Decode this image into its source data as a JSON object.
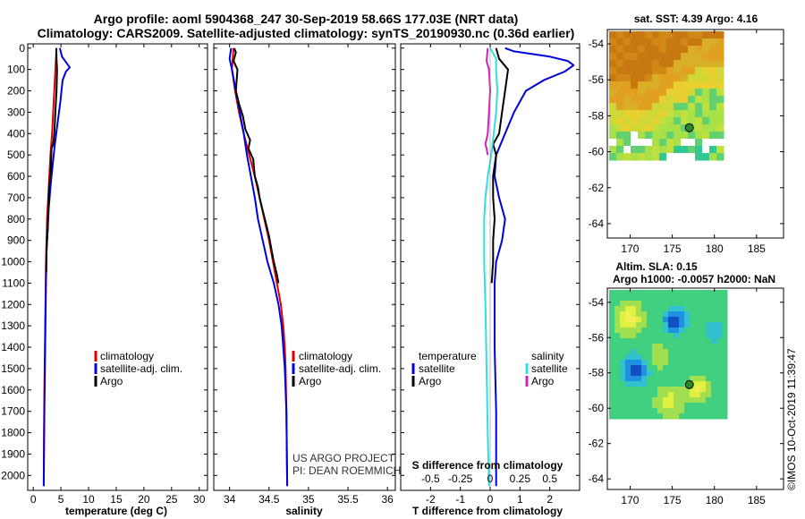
{
  "header": {
    "line1": "Argo profile: aoml 5904368_247 30-Sep-2019 58.66S 177.03E (NRT data)",
    "line2": "Climatology: CARS2009. Satellite-adjusted climatology: synTS_20190930.nc (0.36d earlier)"
  },
  "depth_ticks": [
    "0",
    "100",
    "200",
    "300",
    "400",
    "500",
    "600",
    "700",
    "800",
    "900",
    "1000",
    "1100",
    "1200",
    "1300",
    "1400",
    "1500",
    "1600",
    "1700",
    "1800",
    "1900",
    "2000"
  ],
  "legend": {
    "climatology": "climatology",
    "satellite_adj": "satellite-adj. clim.",
    "argo": "Argo",
    "temperature": "temperature",
    "salinity": "salinity",
    "satellite": "satellite"
  },
  "credits": {
    "project": "US ARGO PROJECT",
    "pi": "PI: DEAN ROEMMICH"
  },
  "maps": {
    "sst_title": "sat. SST: 4.39 Argo: 4.16",
    "sla_title1": "Altim. SLA: 0.15",
    "sla_title2": "Argo h1000: -0.0057 h2000: NaN",
    "lat_ticks": [
      "-54",
      "-56",
      "-58",
      "-60",
      "-62",
      "-64"
    ],
    "lon_ticks": [
      "170",
      "175",
      "180",
      "185"
    ],
    "float_lon": 177.03,
    "float_lat": -58.66
  },
  "watermark": "©IMOS 10-Oct-2019 11:39:47",
  "colors": {
    "climatology": "#e00000",
    "satellite": "#0000dd",
    "argo": "#000000",
    "sat_salinity": "#30e0e0",
    "argo_salinity": "#d020c0"
  },
  "chart_data": [
    {
      "type": "line",
      "xlabel": "temperature (deg C)",
      "ylabel": "",
      "xlim": [
        -1,
        31.5
      ],
      "ylim": [
        2070,
        -20
      ],
      "x_ticks": [
        "0",
        "5",
        "10",
        "15",
        "20",
        "25",
        "30"
      ],
      "series": [
        {
          "name": "climatology",
          "color": "#e00000",
          "points": [
            [
              4.2,
              0
            ],
            [
              4.0,
              100
            ],
            [
              3.8,
              200
            ],
            [
              3.6,
              300
            ],
            [
              3.4,
              400
            ],
            [
              3.1,
              500
            ],
            [
              2.9,
              600
            ],
            [
              2.7,
              700
            ],
            [
              2.5,
              800
            ],
            [
              2.4,
              900
            ],
            [
              2.3,
              1000
            ],
            [
              2.2,
              1200
            ],
            [
              2.1,
              1400
            ],
            [
              2.0,
              1600
            ],
            [
              1.95,
              1800
            ],
            [
              1.9,
              2050
            ]
          ]
        },
        {
          "name": "satellite-adj. clim.",
          "color": "#0000dd",
          "points": [
            [
              4.8,
              0
            ],
            [
              5.2,
              40
            ],
            [
              6.6,
              90
            ],
            [
              5.9,
              110
            ],
            [
              5.3,
              150
            ],
            [
              4.9,
              250
            ],
            [
              4.4,
              350
            ],
            [
              3.9,
              450
            ],
            [
              3.5,
              550
            ],
            [
              3.1,
              650
            ],
            [
              2.8,
              750
            ],
            [
              2.6,
              850
            ],
            [
              2.4,
              950
            ],
            [
              2.3,
              1100
            ],
            [
              2.2,
              1300
            ],
            [
              2.1,
              1500
            ],
            [
              2.0,
              1700
            ],
            [
              1.95,
              1900
            ],
            [
              1.9,
              2050
            ]
          ]
        },
        {
          "name": "Argo",
          "color": "#000000",
          "points": [
            [
              4.16,
              0
            ],
            [
              4.2,
              50
            ],
            [
              4.3,
              100
            ],
            [
              4.2,
              200
            ],
            [
              4.0,
              300
            ],
            [
              3.8,
              400
            ],
            [
              3.6,
              450
            ],
            [
              3.3,
              470
            ],
            [
              3.2,
              550
            ],
            [
              2.9,
              650
            ],
            [
              2.7,
              750
            ],
            [
              2.6,
              850
            ],
            [
              2.5,
              900
            ],
            [
              2.4,
              950
            ],
            [
              2.35,
              1050
            ]
          ]
        }
      ]
    },
    {
      "type": "line",
      "xlabel": "salinity",
      "ylabel": "",
      "xlim": [
        33.8,
        36.1
      ],
      "ylim": [
        2070,
        -20
      ],
      "x_ticks": [
        "34",
        "34.5",
        "35",
        "35.5",
        "36"
      ],
      "series": [
        {
          "name": "climatology",
          "color": "#e00000",
          "points": [
            [
              34.05,
              0
            ],
            [
              34.03,
              100
            ],
            [
              34.05,
              150
            ],
            [
              34.07,
              200
            ],
            [
              34.12,
              300
            ],
            [
              34.18,
              400
            ],
            [
              34.25,
              500
            ],
            [
              34.32,
              600
            ],
            [
              34.38,
              700
            ],
            [
              34.44,
              800
            ],
            [
              34.5,
              900
            ],
            [
              34.55,
              1000
            ],
            [
              34.6,
              1100
            ],
            [
              34.65,
              1200
            ],
            [
              34.68,
              1300
            ],
            [
              34.7,
              1400
            ],
            [
              34.71,
              1500
            ],
            [
              34.72,
              1700
            ],
            [
              34.73,
              2050
            ]
          ]
        },
        {
          "name": "satellite-adj. clim.",
          "color": "#0000dd",
          "points": [
            [
              34.02,
              0
            ],
            [
              34.0,
              50
            ],
            [
              34.03,
              100
            ],
            [
              34.08,
              200
            ],
            [
              34.13,
              300
            ],
            [
              34.18,
              400
            ],
            [
              34.22,
              500
            ],
            [
              34.27,
              600
            ],
            [
              34.32,
              700
            ],
            [
              34.36,
              800
            ],
            [
              34.42,
              900
            ],
            [
              34.48,
              1000
            ],
            [
              34.56,
              1100
            ],
            [
              34.62,
              1200
            ],
            [
              34.66,
              1300
            ],
            [
              34.68,
              1400
            ],
            [
              34.7,
              1500
            ],
            [
              34.72,
              1700
            ],
            [
              34.73,
              2050
            ]
          ]
        },
        {
          "name": "Argo",
          "color": "#000000",
          "points": [
            [
              34.06,
              0
            ],
            [
              34.08,
              20
            ],
            [
              34.05,
              60
            ],
            [
              34.1,
              100
            ],
            [
              34.08,
              200
            ],
            [
              34.12,
              260
            ],
            [
              34.17,
              320
            ],
            [
              34.2,
              380
            ],
            [
              34.26,
              430
            ],
            [
              34.24,
              470
            ],
            [
              34.3,
              520
            ],
            [
              34.32,
              600
            ],
            [
              34.36,
              650
            ],
            [
              34.38,
              700
            ],
            [
              34.42,
              760
            ],
            [
              34.46,
              820
            ],
            [
              34.5,
              880
            ],
            [
              34.53,
              940
            ],
            [
              34.56,
              1000
            ],
            [
              34.6,
              1060
            ],
            [
              34.62,
              1100
            ]
          ]
        }
      ]
    },
    {
      "type": "line",
      "xlabel": "T difference from climatology",
      "title": "S difference from climatology",
      "ylabel": "",
      "xlim": [
        -3,
        3
      ],
      "ylim": [
        2070,
        -20
      ],
      "x_ticks": [
        "-2",
        "-1",
        "0",
        "1",
        "2"
      ],
      "x2_ticks": [
        "-0.5",
        "-0.25",
        "0",
        "0.25",
        "0.5"
      ],
      "x2lim": [
        -0.75,
        0.75
      ],
      "series": [
        {
          "name": "temperature satellite",
          "color": "#0000dd",
          "points": [
            [
              0.5,
              0
            ],
            [
              0.8,
              15
            ],
            [
              2.0,
              40
            ],
            [
              2.6,
              60
            ],
            [
              2.8,
              80
            ],
            [
              2.5,
              110
            ],
            [
              1.8,
              150
            ],
            [
              1.2,
              200
            ],
            [
              0.8,
              300
            ],
            [
              0.5,
              400
            ],
            [
              0.2,
              500
            ],
            [
              0.15,
              600
            ],
            [
              0.3,
              700
            ],
            [
              0.5,
              800
            ],
            [
              0.4,
              900
            ],
            [
              0.2,
              1000
            ],
            [
              0.15,
              1100
            ],
            [
              0.15,
              1400
            ],
            [
              0.2,
              1700
            ],
            [
              0.2,
              2050
            ]
          ]
        },
        {
          "name": "temperature Argo",
          "color": "#000000",
          "points": [
            [
              0.2,
              0
            ],
            [
              0.3,
              50
            ],
            [
              0.6,
              100
            ],
            [
              0.5,
              200
            ],
            [
              0.4,
              300
            ],
            [
              0.3,
              400
            ],
            [
              0.1,
              450
            ],
            [
              0.2,
              500
            ],
            [
              0.1,
              600
            ],
            [
              0.1,
              700
            ],
            [
              0.15,
              800
            ],
            [
              0.1,
              900
            ],
            [
              0.1,
              1000
            ],
            [
              0.05,
              1100
            ]
          ]
        },
        {
          "name": "salinity satellite",
          "color": "#30e0e0",
          "points": [
            [
              0.0,
              0
            ],
            [
              0.05,
              50
            ],
            [
              0.05,
              100
            ],
            [
              0.06,
              200
            ],
            [
              0.05,
              300
            ],
            [
              0.03,
              400
            ],
            [
              0.01,
              500
            ],
            [
              -0.02,
              600
            ],
            [
              -0.04,
              700
            ],
            [
              -0.05,
              800
            ],
            [
              -0.05,
              1000
            ],
            [
              -0.04,
              1200
            ],
            [
              -0.03,
              1500
            ],
            [
              -0.02,
              1800
            ],
            [
              -0.01,
              2050
            ]
          ]
        },
        {
          "name": "salinity Argo",
          "color": "#d020c0",
          "points": [
            [
              -0.02,
              0
            ],
            [
              -0.03,
              60
            ],
            [
              -0.01,
              100
            ],
            [
              0.0,
              200
            ],
            [
              -0.01,
              300
            ],
            [
              -0.02,
              400
            ],
            [
              -0.04,
              450
            ],
            [
              -0.03,
              470
            ],
            [
              -0.02,
              500
            ]
          ]
        }
      ]
    }
  ]
}
